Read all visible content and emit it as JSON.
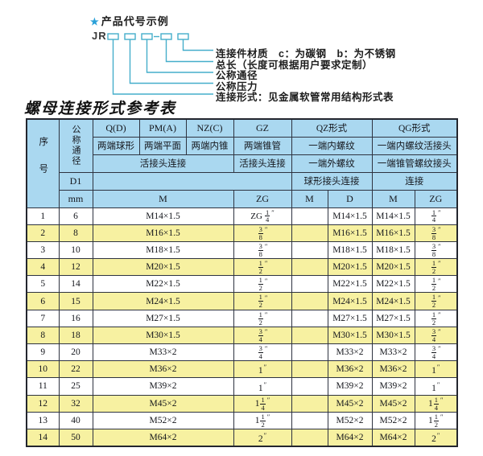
{
  "diagram": {
    "star": "★",
    "heading": "产品代号示例",
    "prefix": "JR",
    "labels": [
      "连接件材质　c：为碳钢　b：为不锈钢",
      "总长（长度可根据用户要求定制）",
      "公称通径",
      "公称压力",
      "连接形式：见金属软管常用结构形式表"
    ]
  },
  "title": "螺母连接形式参考表",
  "inch_mark": "″",
  "colors": {
    "header_blue": "#aad8f0",
    "row_yellow": "#f7f1a1",
    "accent_teal": "#45aecb",
    "star_blue": "#29a0d8"
  },
  "table": {
    "header": {
      "seq": "序号",
      "dn": "公称通径",
      "d1": "D1",
      "mm": "mm",
      "q": "Q(D)",
      "pm": "PM(A)",
      "nz": "NZ(C)",
      "gz": "GZ",
      "qz": "QZ形式",
      "qg": "QG形式",
      "q_sub": "两端球形",
      "pm_sub": "两端平面",
      "nz_sub": "两端内锥",
      "gz_sub": "两端锥管",
      "qz_sub1": "一端内螺纹",
      "qg_sub1": "一端内螺纹活接头",
      "live_joint": "活接头连接",
      "gz_live": "活接头连接",
      "qz_sub2": "一端外螺纹",
      "qg_sub2": "一端锥管螺纹接头",
      "qz_conn": "球形接头连接",
      "qg_conn": "连接",
      "unit_m1": "M",
      "unit_zg1": "ZG",
      "unit_m2": "M",
      "unit_d": "D",
      "unit_m3": "M",
      "unit_zg2": "ZG"
    },
    "rows": [
      {
        "seq": "1",
        "dn": "6",
        "m": "M14×1.5",
        "gz": {
          "pre": "ZG",
          "n": "1",
          "d": "4"
        },
        "qz_m": null,
        "qz_d": "M14×1.5",
        "qg_m": "M14×1.5",
        "qg_zg": {
          "n": "1",
          "d": "4"
        }
      },
      {
        "seq": "2",
        "dn": "8",
        "m": "M16×1.5",
        "gz": {
          "n": "3",
          "d": "8"
        },
        "qz_m": null,
        "qz_d": "M16×1.5",
        "qg_m": "M16×1.5",
        "qg_zg": {
          "n": "3",
          "d": "8"
        }
      },
      {
        "seq": "3",
        "dn": "10",
        "m": "M18×1.5",
        "gz": {
          "n": "3",
          "d": "8"
        },
        "qz_m": null,
        "qz_d": "M18×1.5",
        "qg_m": "M18×1.5",
        "qg_zg": {
          "n": "3",
          "d": "8"
        }
      },
      {
        "seq": "4",
        "dn": "12",
        "m": "M20×1.5",
        "gz": {
          "n": "1",
          "d": "2"
        },
        "qz_m": null,
        "qz_d": "M20×1.5",
        "qg_m": "M20×1.5",
        "qg_zg": {
          "n": "1",
          "d": "2"
        }
      },
      {
        "seq": "5",
        "dn": "14",
        "m": "M22×1.5",
        "gz": {
          "n": "1",
          "d": "2"
        },
        "qz_m": null,
        "qz_d": "M22×1.5",
        "qg_m": "M22×1.5",
        "qg_zg": {
          "n": "1",
          "d": "2"
        }
      },
      {
        "seq": "6",
        "dn": "15",
        "m": "M24×1.5",
        "gz": {
          "n": "1",
          "d": "2"
        },
        "qz_m": null,
        "qz_d": "M24×1.5",
        "qg_m": "M24×1.5",
        "qg_zg": {
          "n": "1",
          "d": "2"
        }
      },
      {
        "seq": "7",
        "dn": "16",
        "m": "M27×1.5",
        "gz": {
          "n": "1",
          "d": "2"
        },
        "qz_m": null,
        "qz_d": "M27×1.5",
        "qg_m": "M27×1.5",
        "qg_zg": {
          "n": "1",
          "d": "2"
        }
      },
      {
        "seq": "8",
        "dn": "18",
        "m": "M30×1.5",
        "gz": {
          "n": "3",
          "d": "4"
        },
        "qz_m": null,
        "qz_d": "M30×1.5",
        "qg_m": "M30×1.5",
        "qg_zg": {
          "n": "3",
          "d": "4"
        }
      },
      {
        "seq": "9",
        "dn": "20",
        "m": "M33×2",
        "gz": {
          "n": "3",
          "d": "4"
        },
        "qz_m": null,
        "qz_d": "M33×2",
        "qg_m": "M33×2",
        "qg_zg": {
          "n": "3",
          "d": "4"
        }
      },
      {
        "seq": "10",
        "dn": "22",
        "m": "M36×2",
        "gz": {
          "w": "1"
        },
        "qz_m": null,
        "qz_d": "M36×2",
        "qg_m": "M36×2",
        "qg_zg": {
          "w": "1"
        }
      },
      {
        "seq": "11",
        "dn": "25",
        "m": "M39×2",
        "gz": {
          "w": "1"
        },
        "qz_m": null,
        "qz_d": "M39×2",
        "qg_m": "M39×2",
        "qg_zg": {
          "w": "1"
        }
      },
      {
        "seq": "12",
        "dn": "32",
        "m": "M45×2",
        "gz": {
          "w": "1",
          "n": "1",
          "d": "4"
        },
        "qz_m": null,
        "qz_d": "M45×2",
        "qg_m": "M45×2",
        "qg_zg": {
          "w": "1",
          "n": "1",
          "d": "4"
        }
      },
      {
        "seq": "13",
        "dn": "40",
        "m": "M52×2",
        "gz": {
          "w": "1",
          "n": "1",
          "d": "2"
        },
        "qz_m": null,
        "qz_d": "M52×2",
        "qg_m": "M52×2",
        "qg_zg": {
          "w": "1",
          "n": "1",
          "d": "2"
        }
      },
      {
        "seq": "14",
        "dn": "50",
        "m": "M64×2",
        "gz": {
          "w": "2"
        },
        "qz_m": null,
        "qz_d": "M64×2",
        "qg_m": "M64×2",
        "qg_zg": {
          "w": "2"
        }
      }
    ]
  }
}
